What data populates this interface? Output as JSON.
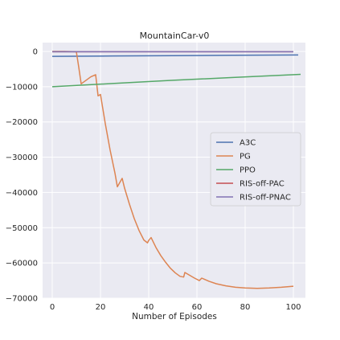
{
  "chart_data": {
    "type": "line",
    "title": "MountainCar-v0",
    "xlabel": "Number of Episodes",
    "ylabel": "",
    "xlim": [
      -4,
      105
    ],
    "ylim": [
      -70000,
      2500
    ],
    "x_ticks": [
      0,
      20,
      40,
      60,
      80,
      100
    ],
    "y_ticks": [
      0,
      -10000,
      -20000,
      -30000,
      -40000,
      -50000,
      -60000,
      -70000
    ],
    "x_tick_labels": [
      "0",
      "20",
      "40",
      "60",
      "80",
      "100"
    ],
    "y_tick_labels": [
      "0",
      "−10000",
      "−20000",
      "−30000",
      "−40000",
      "−50000",
      "−60000",
      "−70000"
    ],
    "grid": true,
    "legend_position": "center-right",
    "series": [
      {
        "name": "A3C",
        "color": "#4c72b0",
        "x": [
          0,
          25,
          50,
          75,
          102
        ],
        "y": [
          -1400,
          -1300,
          -1200,
          -1100,
          -1000
        ]
      },
      {
        "name": "PG",
        "color": "#dd8452",
        "x": [
          0,
          5,
          10,
          11,
          12,
          14,
          16,
          18,
          19,
          20,
          22,
          24,
          26,
          27,
          28,
          29,
          30,
          32,
          34,
          36,
          38,
          39.5,
          40,
          41,
          43,
          45,
          47,
          49,
          51,
          53,
          54.5,
          55,
          57,
          59,
          61,
          62,
          63,
          65,
          68,
          72,
          76,
          80,
          85,
          90,
          95,
          100
        ],
        "y": [
          0,
          0,
          -100,
          -4500,
          -9200,
          -8200,
          -7200,
          -6600,
          -12600,
          -12200,
          -20500,
          -28000,
          -34500,
          -38400,
          -37200,
          -36000,
          -38800,
          -43300,
          -47400,
          -50800,
          -53500,
          -54300,
          -53600,
          -52800,
          -55600,
          -57900,
          -59800,
          -61500,
          -62800,
          -63800,
          -64000,
          -62700,
          -63500,
          -64300,
          -65000,
          -64300,
          -64600,
          -65200,
          -65900,
          -66500,
          -66900,
          -67100,
          -67200,
          -67100,
          -66900,
          -66600
        ]
      },
      {
        "name": "PPO",
        "color": "#55a868",
        "x": [
          0,
          25,
          50,
          75,
          103
        ],
        "y": [
          -10000,
          -9100,
          -8200,
          -7400,
          -6500
        ]
      },
      {
        "name": "RIS-off-PAC",
        "color": "#c44e52",
        "x": [
          0,
          50,
          100
        ],
        "y": [
          -100,
          -100,
          -100
        ]
      },
      {
        "name": "RIS-off-PNAC",
        "color": "#8172b3",
        "x": [
          0,
          50,
          100
        ],
        "y": [
          -100,
          -100,
          -100
        ]
      }
    ]
  }
}
